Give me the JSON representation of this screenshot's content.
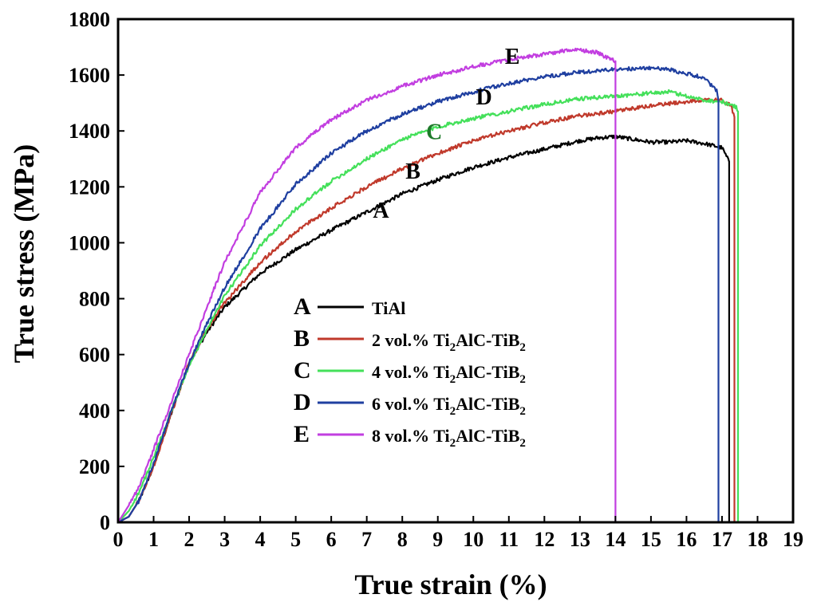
{
  "chart_data": {
    "type": "line",
    "title": "",
    "xlabel": "True strain (%)",
    "ylabel": "True stress (MPa)",
    "xlim": [
      0,
      19
    ],
    "ylim": [
      0,
      1800
    ],
    "grid": false,
    "legend_position": "center-left",
    "x_ticks": [
      "0",
      "1",
      "2",
      "3",
      "4",
      "5",
      "6",
      "7",
      "8",
      "9",
      "10",
      "11",
      "12",
      "13",
      "14",
      "15",
      "16",
      "17",
      "18",
      "19"
    ],
    "y_ticks": [
      "0",
      "200",
      "400",
      "600",
      "800",
      "1000",
      "1200",
      "1400",
      "1600",
      "1800"
    ],
    "series": [
      {
        "letter": "A",
        "name": "TiAl",
        "name_suffix": "",
        "color": "#000000",
        "label_at": [
          7.4,
          1090
        ],
        "x": [
          0,
          0.3,
          0.6,
          1.0,
          1.5,
          2.0,
          2.5,
          3.0,
          4.0,
          5.0,
          6.0,
          7.0,
          8.0,
          9.0,
          10.0,
          11.0,
          12.0,
          13.0,
          13.5,
          14.0,
          14.5,
          15.0,
          15.5,
          16.0,
          16.5,
          17.0,
          17.2,
          17.2
        ],
        "y": [
          0,
          20,
          80,
          200,
          390,
          570,
          680,
          770,
          890,
          975,
          1045,
          1110,
          1175,
          1225,
          1270,
          1305,
          1335,
          1365,
          1375,
          1380,
          1370,
          1360,
          1360,
          1365,
          1355,
          1340,
          1290,
          0
        ]
      },
      {
        "letter": "B",
        "name": "2 vol.% Ti",
        "name_suffix": "AlC-TiB",
        "color": "#c0392b",
        "label_at": [
          8.3,
          1230
        ],
        "x": [
          0,
          0.3,
          0.6,
          1.0,
          1.5,
          2.0,
          2.5,
          3.0,
          4.0,
          5.0,
          6.0,
          7.0,
          8.0,
          9.0,
          10.0,
          11.0,
          12.0,
          13.0,
          14.0,
          15.0,
          16.0,
          16.5,
          17.0,
          17.25,
          17.35,
          17.35
        ],
        "y": [
          0,
          20,
          80,
          200,
          390,
          570,
          690,
          785,
          930,
          1040,
          1125,
          1200,
          1265,
          1320,
          1365,
          1400,
          1430,
          1455,
          1470,
          1490,
          1505,
          1510,
          1510,
          1490,
          1450,
          0
        ]
      },
      {
        "letter": "C",
        "name": "4 vol.% Ti",
        "name_suffix": "AlC-TiB",
        "color": "#44e05a",
        "label_at": [
          8.9,
          1370
        ],
        "x": [
          0,
          0.3,
          0.6,
          1.0,
          1.5,
          2.0,
          2.5,
          3.0,
          4.0,
          5.0,
          6.0,
          7.0,
          8.0,
          9.0,
          10.0,
          11.0,
          12.0,
          13.0,
          14.0,
          15.0,
          15.5,
          16.0,
          16.5,
          17.0,
          17.4,
          17.45,
          17.45
        ],
        "y": [
          0,
          40,
          110,
          230,
          400,
          560,
          690,
          810,
          990,
          1120,
          1220,
          1300,
          1370,
          1415,
          1445,
          1470,
          1495,
          1515,
          1525,
          1535,
          1540,
          1525,
          1510,
          1505,
          1485,
          1470,
          0
        ]
      },
      {
        "letter": "D",
        "name": "6 vol.% Ti",
        "name_suffix": "AlC-TiB",
        "color": "#1f3fa0",
        "label_at": [
          10.3,
          1495
        ],
        "x": [
          0,
          0.3,
          0.6,
          1.0,
          1.5,
          2.0,
          2.5,
          3.0,
          4.0,
          5.0,
          6.0,
          7.0,
          8.0,
          9.0,
          10.0,
          11.0,
          12.0,
          13.0,
          14.0,
          15.0,
          15.5,
          16.0,
          16.5,
          16.85,
          16.9,
          16.9
        ],
        "y": [
          0,
          20,
          80,
          210,
          400,
          570,
          710,
          840,
          1050,
          1210,
          1320,
          1400,
          1460,
          1505,
          1540,
          1570,
          1595,
          1610,
          1620,
          1625,
          1620,
          1605,
          1590,
          1545,
          1510,
          0
        ]
      },
      {
        "letter": "E",
        "name": "8 vol.% Ti",
        "name_suffix": "AlC-TiB",
        "color": "#c23ee0",
        "label_at": [
          11.1,
          1640
        ],
        "x": [
          0,
          0.3,
          0.6,
          1.0,
          1.5,
          2.0,
          2.5,
          3.0,
          4.0,
          5.0,
          6.0,
          7.0,
          8.0,
          9.0,
          10.0,
          11.0,
          12.0,
          12.5,
          13.0,
          13.5,
          13.8,
          14.0,
          14.0
        ],
        "y": [
          0,
          60,
          130,
          260,
          430,
          600,
          770,
          930,
          1180,
          1340,
          1440,
          1510,
          1560,
          1600,
          1630,
          1655,
          1675,
          1685,
          1690,
          1680,
          1660,
          1650,
          0
        ]
      }
    ]
  }
}
